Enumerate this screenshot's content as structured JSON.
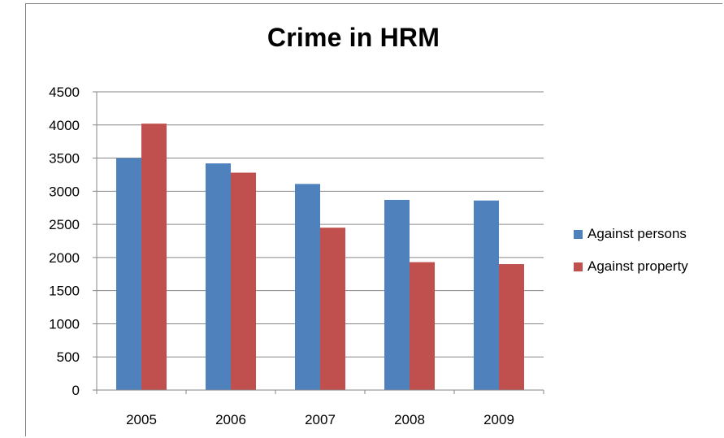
{
  "chart_data": {
    "type": "bar",
    "title": "Crime in HRM",
    "xlabel": "",
    "ylabel": "",
    "categories": [
      "2005",
      "2006",
      "2007",
      "2008",
      "2009"
    ],
    "ylim": [
      0,
      4500
    ],
    "yticks": [
      "4500",
      "4000",
      "3500",
      "3000",
      "2500",
      "2000",
      "1500",
      "1000",
      "500",
      "0"
    ],
    "grid": true,
    "legend_position": "right",
    "series": [
      {
        "name": "Against persons",
        "color": "#4f81bd",
        "values": [
          3500,
          3420,
          3110,
          2870,
          2860
        ]
      },
      {
        "name": "Against property",
        "color": "#c0504d",
        "values": [
          4020,
          3280,
          2450,
          1930,
          1900
        ]
      }
    ]
  }
}
